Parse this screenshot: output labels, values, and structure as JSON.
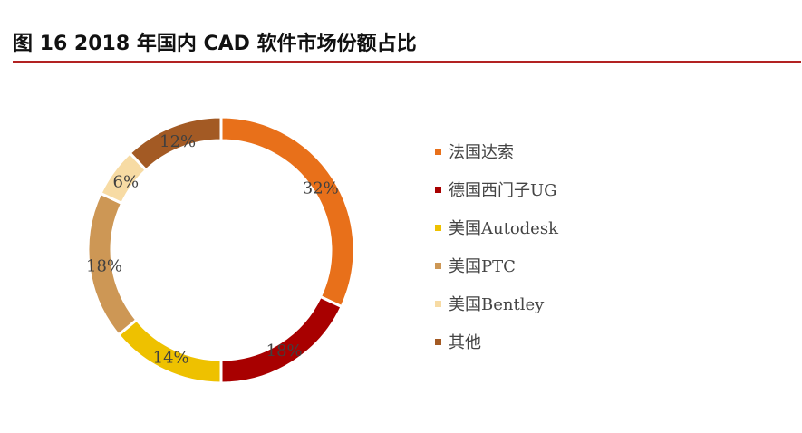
{
  "title": "图 16 2018 年国内 CAD 软件市场份额占比",
  "chart_data": {
    "type": "pie",
    "variant": "donut",
    "legend_position": "right",
    "series": [
      {
        "name": "法国达索",
        "value": 32,
        "label": "32%",
        "color": "#e8701a"
      },
      {
        "name": "德国西门子UG",
        "value": 18,
        "label": "18%",
        "color": "#a80000"
      },
      {
        "name": "美国Autodesk",
        "value": 14,
        "label": "14%",
        "color": "#eec100"
      },
      {
        "name": "美国PTC",
        "value": 18,
        "label": "18%",
        "color": "#cd9755"
      },
      {
        "name": "美国Bentley",
        "value": 6,
        "label": "6%",
        "color": "#f7dba4"
      },
      {
        "name": "其他",
        "value": 12,
        "label": "12%",
        "color": "#a35a24"
      }
    ]
  }
}
